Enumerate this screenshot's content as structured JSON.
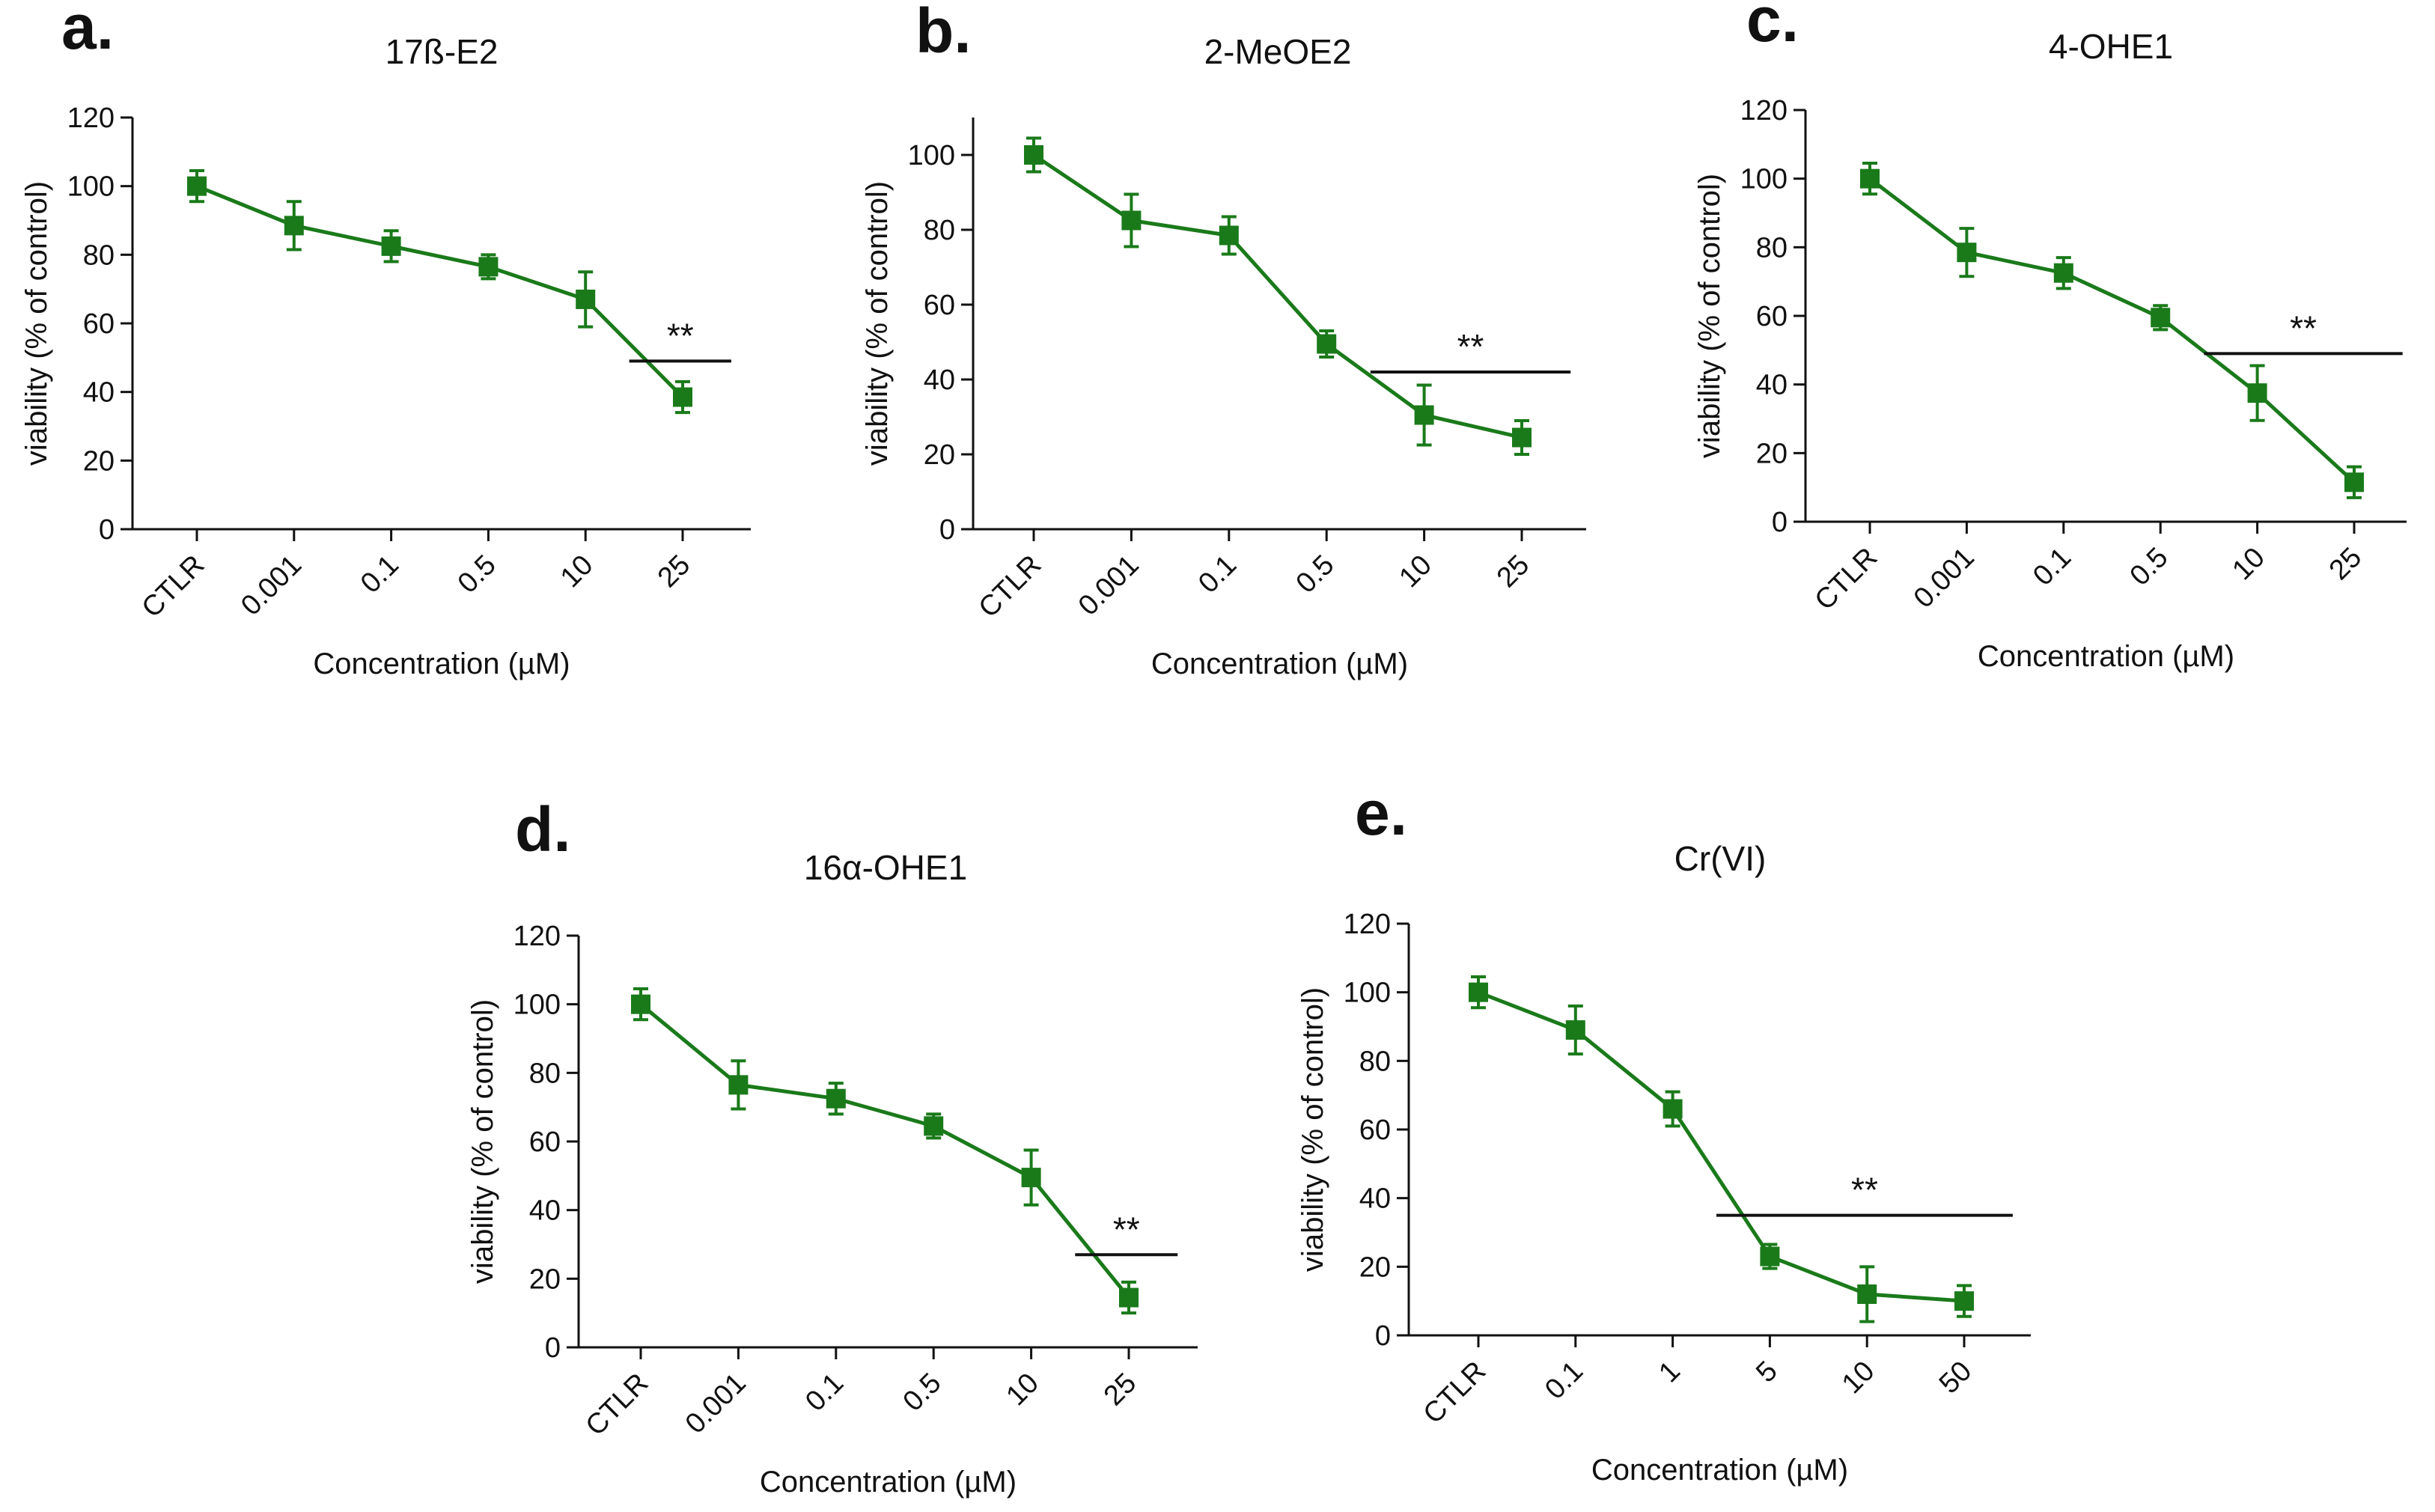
{
  "figure": {
    "series_color": "#1a7a1a"
  },
  "chart_data": [
    {
      "type": "line",
      "panel_label": "a.",
      "title": "17ß-E2",
      "xlabel": "Concentration (µM)",
      "ylabel": "viability (% of control)",
      "ylim": [
        0,
        120
      ],
      "yticks": [
        0,
        20,
        40,
        60,
        80,
        100,
        120
      ],
      "categories": [
        "CTLR",
        "0.001",
        "0.1",
        "0.5",
        "10",
        "25"
      ],
      "series": [
        {
          "name": "viability",
          "values": [
            100,
            88.5,
            82.5,
            76.5,
            67,
            38.5
          ],
          "errors": [
            4.5,
            7,
            4.5,
            3.5,
            8,
            4.5
          ]
        }
      ],
      "significance": {
        "label": "**",
        "from": "10",
        "to": "25",
        "y": 49
      }
    },
    {
      "type": "line",
      "panel_label": "b.",
      "title": "2-MeOE2",
      "xlabel": "Concentration (µM)",
      "ylabel": "viability (% of control)",
      "ylim": [
        0,
        110
      ],
      "yticks": [
        0,
        20,
        40,
        60,
        80,
        100
      ],
      "categories": [
        "CTLR",
        "0.001",
        "0.1",
        "0.5",
        "10",
        "25"
      ],
      "series": [
        {
          "name": "viability",
          "values": [
            100,
            82.5,
            78.5,
            49.5,
            30.5,
            24.5
          ],
          "errors": [
            4.5,
            7,
            5,
            3.5,
            8,
            4.5
          ]
        }
      ],
      "significance": {
        "label": "**",
        "from": "0.5",
        "to": "25",
        "y": 42
      }
    },
    {
      "type": "line",
      "panel_label": "c.",
      "title": "4-OHE1",
      "xlabel": "Concentration (µM)",
      "ylabel": "viability (% of control)",
      "ylim": [
        0,
        120
      ],
      "yticks": [
        0,
        20,
        40,
        60,
        80,
        100,
        120
      ],
      "categories": [
        "CTLR",
        "0.001",
        "0.1",
        "0.5",
        "10",
        "25"
      ],
      "series": [
        {
          "name": "viability",
          "values": [
            100,
            78.5,
            72.5,
            59.5,
            37.5,
            11.5
          ],
          "errors": [
            4.5,
            7,
            4.5,
            3.5,
            8,
            4.5
          ]
        }
      ],
      "significance": {
        "label": "**",
        "from": "0.5",
        "to": "25",
        "y": 49
      }
    },
    {
      "type": "line",
      "panel_label": "d.",
      "title": "16α-OHE1",
      "xlabel": "Concentration (µM)",
      "ylabel": "viability (% of control)",
      "ylim": [
        0,
        120
      ],
      "yticks": [
        0,
        20,
        40,
        60,
        80,
        100,
        120
      ],
      "categories": [
        "CTLR",
        "0.001",
        "0.1",
        "0.5",
        "10",
        "25"
      ],
      "series": [
        {
          "name": "viability",
          "values": [
            100,
            76.5,
            72.5,
            64.5,
            49.5,
            14.5
          ],
          "errors": [
            4.5,
            7,
            4.5,
            3.5,
            8,
            4.5
          ]
        }
      ],
      "significance": {
        "label": "**",
        "from": "10",
        "to": "25",
        "y": 27
      }
    },
    {
      "type": "line",
      "panel_label": "e.",
      "title": "Cr(VI)",
      "xlabel": "Concentration (µM)",
      "ylabel": "viability (% of control)",
      "ylim": [
        0,
        120
      ],
      "yticks": [
        0,
        20,
        40,
        60,
        80,
        100,
        120
      ],
      "categories": [
        "CTLR",
        "0.1",
        "1",
        "5",
        "10",
        "50"
      ],
      "series": [
        {
          "name": "viability",
          "values": [
            100,
            89,
            66,
            23,
            12,
            10
          ],
          "errors": [
            4.5,
            7,
            5,
            3.5,
            8,
            4.5
          ]
        }
      ],
      "significance": {
        "label": "**",
        "from": "1",
        "to": "50",
        "y": 35
      }
    }
  ]
}
